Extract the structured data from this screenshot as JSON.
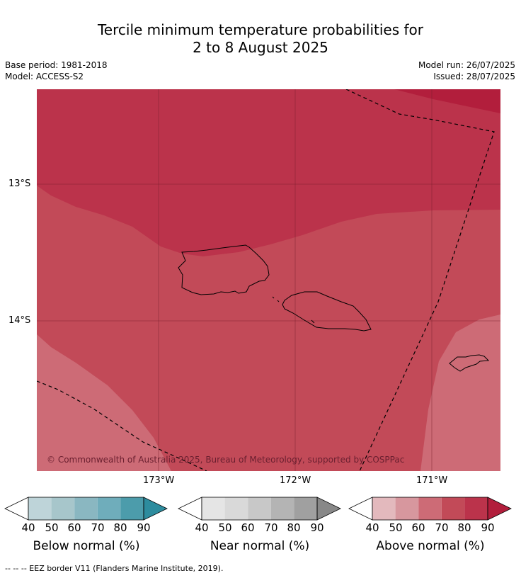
{
  "title_line1": "Tercile minimum temperature probabilities for",
  "title_line2": "2 to 8 August 2025",
  "base_period": "Base period: 1981-2018",
  "model": "Model: ACCESS-S2",
  "model_run": "Model run: 26/07/2025",
  "issued": "Issued: 28/07/2025",
  "copyright": "© Commonwealth of Australia 2025, Bureau of Meteorology, supported by COSPPac",
  "lat_labels": [
    "13°S",
    "14°S"
  ],
  "lon_labels": [
    "173°W",
    "172°W",
    "171°W"
  ],
  "colorbars": [
    {
      "label": "Below normal (%)",
      "ticks": [
        "40",
        "50",
        "60",
        "70",
        "80",
        "90"
      ],
      "colors": [
        "#ffffff",
        "#bed4d9",
        "#a7c6cb",
        "#8ab7c1",
        "#6fadbb",
        "#4c9cab",
        "#2d8c9e"
      ]
    },
    {
      "label": "Near normal (%)",
      "ticks": [
        "40",
        "50",
        "60",
        "70",
        "80",
        "90"
      ],
      "colors": [
        "#ffffff",
        "#e5e5e5",
        "#d9d9d9",
        "#c8c8c8",
        "#b4b4b4",
        "#a0a0a0",
        "#888888"
      ]
    },
    {
      "label": "Above normal (%)",
      "ticks": [
        "40",
        "50",
        "60",
        "70",
        "80",
        "90"
      ],
      "colors": [
        "#ffffff",
        "#e3b9bd",
        "#d7979e",
        "#cd6b76",
        "#c24a58",
        "#bb334b",
        "#b21e3c"
      ]
    }
  ],
  "footnote": "--  --  -- EEZ border V11 (Flanders Marine Institute, 2019).",
  "map_colors": {
    "p60_70": "#cd6b76",
    "p70_80": "#c24a58",
    "p80_90": "#bb334b",
    "p90": "#b21e3c"
  }
}
